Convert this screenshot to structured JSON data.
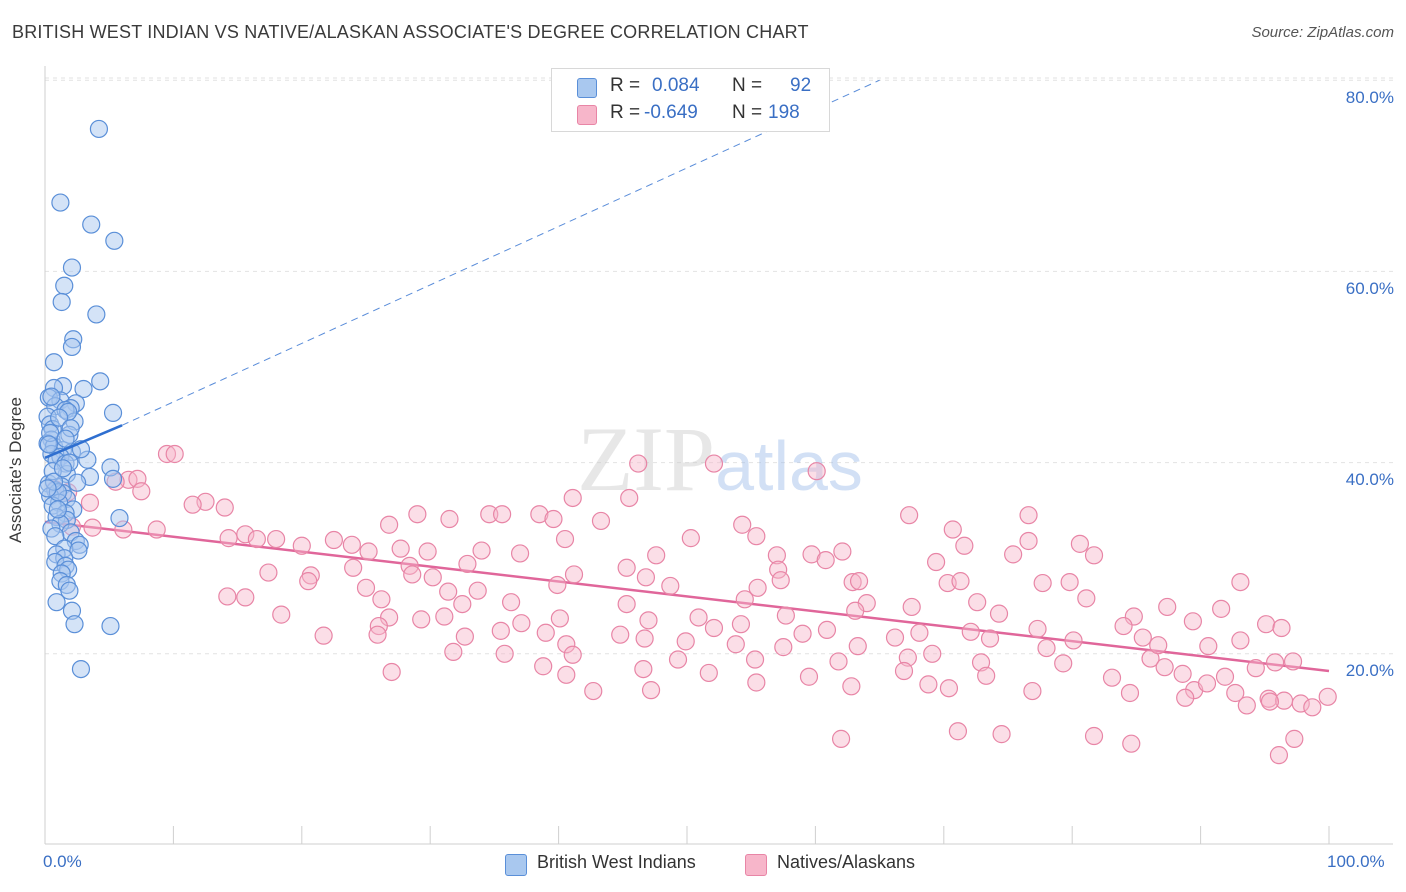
{
  "title": "BRITISH WEST INDIAN VS NATIVE/ALASKAN ASSOCIATE'S DEGREE CORRELATION CHART",
  "source": "Source: ZipAtlas.com",
  "watermark": "ZIPatlas",
  "colors": {
    "blue_fill": "#a9c8ef",
    "blue_stroke": "#5a8fd8",
    "blue_line": "#2f6fd0",
    "pink_fill": "#f7b6ca",
    "pink_stroke": "#e885a6",
    "pink_line": "#e0669a",
    "axis_text": "#3a6fc4",
    "grid": "#e2e2e2"
  },
  "legend": {
    "r_label": "R =",
    "n_label": "N =",
    "rows": [
      {
        "r": "0.084",
        "n": "92",
        "color": "blue"
      },
      {
        "r": "-0.649",
        "n": "198",
        "color": "pink"
      }
    ]
  },
  "bottom_legend": [
    "British West Indians",
    "Natives/Alaskans"
  ],
  "chart_data": {
    "type": "scatter",
    "title": "BRITISH WEST INDIAN VS NATIVE/ALASKAN ASSOCIATE'S DEGREE CORRELATION CHART",
    "xlabel": "",
    "ylabel": "Associate's Degree",
    "x_tick_labels": [
      "0.0%",
      "100.0%"
    ],
    "y_tick_labels": [
      "20.0%",
      "40.0%",
      "60.0%",
      "80.0%"
    ],
    "xlim": [
      0,
      100
    ],
    "ylim": [
      0,
      82
    ],
    "grid": true,
    "legend_position": "top-center",
    "series": [
      {
        "name": "British West Indians",
        "r": 0.084,
        "n": 92,
        "trend_solid": [
          [
            0,
            40.5
          ],
          [
            6,
            43.9
          ]
        ],
        "trend_dashed": [
          [
            6,
            43.9
          ],
          [
            65,
            80.0
          ]
        ],
        "points": [
          [
            4.2,
            74.9
          ],
          [
            1.2,
            67.2
          ],
          [
            3.6,
            64.9
          ],
          [
            5.4,
            63.2
          ],
          [
            2.1,
            60.4
          ],
          [
            1.5,
            58.5
          ],
          [
            1.3,
            56.8
          ],
          [
            4.0,
            55.5
          ],
          [
            2.2,
            52.9
          ],
          [
            2.1,
            52.1
          ],
          [
            0.7,
            50.5
          ],
          [
            4.3,
            48.5
          ],
          [
            1.4,
            48.0
          ],
          [
            0.7,
            47.8
          ],
          [
            3.0,
            47.7
          ],
          [
            0.3,
            46.8
          ],
          [
            1.2,
            46.5
          ],
          [
            2.4,
            46.2
          ],
          [
            0.8,
            45.9
          ],
          [
            2.0,
            45.7
          ],
          [
            1.6,
            45.5
          ],
          [
            5.3,
            45.2
          ],
          [
            0.2,
            44.8
          ],
          [
            2.3,
            44.3
          ],
          [
            0.4,
            44.0
          ],
          [
            0.6,
            43.5
          ],
          [
            1.9,
            42.9
          ],
          [
            0.5,
            42.4
          ],
          [
            0.2,
            42.0
          ],
          [
            0.7,
            41.7
          ],
          [
            1.4,
            41.3
          ],
          [
            2.1,
            41.1
          ],
          [
            0.5,
            40.9
          ],
          [
            1.2,
            40.6
          ],
          [
            3.3,
            40.3
          ],
          [
            0.9,
            40.2
          ],
          [
            1.6,
            39.9
          ],
          [
            5.1,
            39.5
          ],
          [
            1.7,
            38.8
          ],
          [
            3.5,
            38.5
          ],
          [
            5.3,
            38.3
          ],
          [
            0.3,
            37.8
          ],
          [
            1.3,
            37.5
          ],
          [
            0.8,
            37.1
          ],
          [
            1.4,
            36.8
          ],
          [
            0.4,
            36.5
          ],
          [
            1.7,
            36.2
          ],
          [
            1.1,
            35.8
          ],
          [
            0.6,
            35.5
          ],
          [
            2.2,
            35.1
          ],
          [
            1.6,
            34.7
          ],
          [
            0.9,
            34.3
          ],
          [
            1.7,
            34.0
          ],
          [
            5.8,
            34.2
          ],
          [
            1.2,
            33.6
          ],
          [
            0.5,
            33.1
          ],
          [
            2.0,
            32.7
          ],
          [
            0.8,
            32.3
          ],
          [
            2.4,
            31.8
          ],
          [
            2.7,
            31.4
          ],
          [
            1.5,
            31.0
          ],
          [
            2.6,
            30.8
          ],
          [
            0.9,
            30.4
          ],
          [
            1.5,
            30.0
          ],
          [
            0.8,
            29.6
          ],
          [
            1.6,
            29.2
          ],
          [
            1.8,
            28.8
          ],
          [
            1.3,
            28.4
          ],
          [
            1.2,
            27.6
          ],
          [
            1.7,
            27.2
          ],
          [
            1.9,
            26.6
          ],
          [
            0.9,
            25.4
          ],
          [
            2.1,
            24.5
          ],
          [
            2.3,
            23.1
          ],
          [
            5.1,
            22.9
          ],
          [
            2.8,
            18.4
          ],
          [
            0.6,
            39.1
          ],
          [
            1.0,
            36.9
          ],
          [
            1.8,
            45.3
          ],
          [
            0.4,
            43.1
          ],
          [
            2.5,
            37.9
          ],
          [
            1.1,
            44.7
          ],
          [
            0.3,
            41.9
          ],
          [
            1.9,
            40.0
          ],
          [
            0.7,
            38.0
          ],
          [
            2.8,
            41.4
          ],
          [
            1.4,
            39.4
          ],
          [
            0.5,
            46.9
          ],
          [
            2.0,
            43.6
          ],
          [
            1.0,
            35.1
          ],
          [
            0.2,
            37.3
          ],
          [
            1.6,
            42.5
          ]
        ]
      },
      {
        "name": "Natives/Alaskans",
        "r": -0.649,
        "n": 198,
        "trend": [
          [
            0,
            33.8
          ],
          [
            100,
            18.2
          ]
        ],
        "points": [
          [
            9.5,
            40.9
          ],
          [
            10.1,
            40.9
          ],
          [
            46.2,
            39.9
          ],
          [
            52.1,
            39.9
          ],
          [
            60.1,
            39.1
          ],
          [
            6.5,
            38.2
          ],
          [
            7.2,
            38.3
          ],
          [
            5.5,
            38.0
          ],
          [
            0.8,
            37.2
          ],
          [
            1.8,
            36.9
          ],
          [
            7.5,
            37.0
          ],
          [
            41.1,
            36.3
          ],
          [
            45.5,
            36.3
          ],
          [
            12.5,
            35.9
          ],
          [
            11.5,
            35.6
          ],
          [
            3.5,
            35.8
          ],
          [
            14.0,
            35.3
          ],
          [
            29.0,
            34.6
          ],
          [
            34.6,
            34.6
          ],
          [
            35.6,
            34.6
          ],
          [
            38.5,
            34.6
          ],
          [
            67.3,
            34.5
          ],
          [
            76.6,
            34.5
          ],
          [
            31.5,
            34.1
          ],
          [
            39.6,
            34.1
          ],
          [
            43.3,
            33.9
          ],
          [
            26.8,
            33.5
          ],
          [
            54.3,
            33.5
          ],
          [
            70.7,
            33.0
          ],
          [
            2.1,
            33.3
          ],
          [
            3.7,
            33.2
          ],
          [
            6.1,
            33.0
          ],
          [
            8.7,
            33.0
          ],
          [
            15.6,
            32.5
          ],
          [
            16.5,
            32.0
          ],
          [
            14.3,
            32.1
          ],
          [
            18.0,
            32.0
          ],
          [
            22.5,
            31.9
          ],
          [
            40.5,
            32.0
          ],
          [
            50.3,
            32.1
          ],
          [
            55.4,
            32.3
          ],
          [
            76.6,
            31.8
          ],
          [
            20.0,
            31.3
          ],
          [
            23.9,
            31.4
          ],
          [
            25.2,
            30.7
          ],
          [
            27.7,
            31.0
          ],
          [
            29.8,
            30.7
          ],
          [
            34.0,
            30.8
          ],
          [
            37.0,
            30.5
          ],
          [
            47.6,
            30.3
          ],
          [
            57.0,
            30.3
          ],
          [
            59.7,
            30.4
          ],
          [
            60.8,
            29.8
          ],
          [
            62.1,
            30.7
          ],
          [
            75.4,
            30.4
          ],
          [
            80.6,
            31.5
          ],
          [
            71.6,
            31.3
          ],
          [
            32.9,
            29.4
          ],
          [
            24.0,
            29.0
          ],
          [
            28.4,
            29.2
          ],
          [
            45.3,
            29.0
          ],
          [
            57.1,
            28.8
          ],
          [
            69.4,
            29.6
          ],
          [
            81.7,
            30.3
          ],
          [
            17.4,
            28.5
          ],
          [
            20.7,
            28.2
          ],
          [
            28.6,
            28.3
          ],
          [
            30.2,
            28.0
          ],
          [
            41.2,
            28.3
          ],
          [
            46.8,
            28.0
          ],
          [
            57.3,
            27.7
          ],
          [
            62.9,
            27.5
          ],
          [
            70.3,
            27.4
          ],
          [
            77.7,
            27.4
          ],
          [
            93.1,
            27.5
          ],
          [
            20.5,
            27.6
          ],
          [
            25.0,
            26.9
          ],
          [
            31.4,
            26.5
          ],
          [
            33.7,
            26.6
          ],
          [
            39.9,
            27.2
          ],
          [
            48.7,
            27.1
          ],
          [
            55.5,
            26.9
          ],
          [
            63.4,
            27.6
          ],
          [
            71.3,
            27.6
          ],
          [
            79.8,
            27.5
          ],
          [
            14.2,
            26.0
          ],
          [
            15.6,
            25.9
          ],
          [
            26.2,
            25.7
          ],
          [
            32.5,
            25.2
          ],
          [
            36.3,
            25.4
          ],
          [
            45.3,
            25.2
          ],
          [
            54.5,
            25.7
          ],
          [
            64.0,
            25.3
          ],
          [
            72.6,
            25.4
          ],
          [
            81.1,
            25.8
          ],
          [
            87.4,
            24.9
          ],
          [
            18.4,
            24.1
          ],
          [
            26.8,
            23.8
          ],
          [
            29.3,
            23.6
          ],
          [
            31.1,
            23.9
          ],
          [
            37.1,
            23.2
          ],
          [
            40.1,
            23.7
          ],
          [
            47.0,
            23.5
          ],
          [
            50.9,
            23.8
          ],
          [
            57.7,
            24.0
          ],
          [
            63.1,
            24.5
          ],
          [
            67.5,
            24.9
          ],
          [
            74.3,
            24.2
          ],
          [
            84.8,
            23.9
          ],
          [
            91.6,
            24.7
          ],
          [
            95.1,
            23.1
          ],
          [
            96.3,
            22.7
          ],
          [
            26.0,
            22.9
          ],
          [
            35.5,
            22.4
          ],
          [
            44.8,
            22.0
          ],
          [
            52.1,
            22.7
          ],
          [
            60.9,
            22.5
          ],
          [
            68.1,
            22.2
          ],
          [
            72.1,
            22.3
          ],
          [
            77.3,
            22.6
          ],
          [
            84.0,
            22.9
          ],
          [
            89.4,
            23.4
          ],
          [
            21.7,
            21.9
          ],
          [
            25.9,
            22.0
          ],
          [
            32.7,
            21.8
          ],
          [
            39.0,
            22.2
          ],
          [
            46.7,
            21.6
          ],
          [
            49.9,
            21.3
          ],
          [
            53.8,
            21.0
          ],
          [
            59.0,
            22.1
          ],
          [
            66.2,
            21.7
          ],
          [
            73.6,
            21.6
          ],
          [
            80.1,
            21.4
          ],
          [
            85.5,
            21.7
          ],
          [
            93.1,
            21.4
          ],
          [
            40.6,
            21.0
          ],
          [
            57.5,
            20.7
          ],
          [
            69.1,
            20.0
          ],
          [
            78.0,
            20.6
          ],
          [
            90.6,
            20.8
          ],
          [
            31.8,
            20.2
          ],
          [
            41.1,
            19.9
          ],
          [
            49.3,
            19.4
          ],
          [
            55.3,
            19.4
          ],
          [
            61.8,
            19.2
          ],
          [
            67.2,
            19.6
          ],
          [
            72.9,
            19.1
          ],
          [
            79.3,
            19.0
          ],
          [
            86.1,
            19.5
          ],
          [
            95.8,
            19.1
          ],
          [
            97.2,
            19.2
          ],
          [
            38.8,
            18.7
          ],
          [
            46.6,
            18.4
          ],
          [
            51.7,
            18.0
          ],
          [
            59.5,
            17.6
          ],
          [
            66.9,
            18.2
          ],
          [
            73.3,
            17.7
          ],
          [
            83.1,
            17.5
          ],
          [
            87.2,
            18.6
          ],
          [
            88.6,
            17.9
          ],
          [
            91.9,
            17.6
          ],
          [
            94.3,
            18.5
          ],
          [
            27.0,
            18.1
          ],
          [
            42.7,
            16.1
          ],
          [
            47.2,
            16.2
          ],
          [
            55.4,
            17.0
          ],
          [
            62.8,
            16.6
          ],
          [
            70.4,
            16.4
          ],
          [
            76.9,
            16.1
          ],
          [
            84.5,
            15.9
          ],
          [
            89.5,
            16.2
          ],
          [
            90.5,
            16.9
          ],
          [
            92.7,
            15.9
          ],
          [
            95.3,
            15.3
          ],
          [
            96.5,
            15.1
          ],
          [
            97.8,
            14.8
          ],
          [
            98.7,
            14.4
          ],
          [
            99.9,
            15.5
          ],
          [
            74.5,
            11.6
          ],
          [
            62.0,
            11.1
          ],
          [
            84.6,
            10.6
          ],
          [
            81.7,
            11.4
          ],
          [
            96.1,
            9.4
          ],
          [
            97.3,
            11.1
          ],
          [
            71.1,
            11.9
          ],
          [
            93.6,
            14.6
          ],
          [
            88.8,
            15.4
          ],
          [
            95.4,
            15.0
          ],
          [
            68.8,
            16.8
          ],
          [
            40.6,
            17.8
          ],
          [
            35.8,
            20.0
          ],
          [
            54.2,
            23.1
          ],
          [
            63.3,
            20.8
          ],
          [
            86.7,
            20.9
          ]
        ]
      }
    ]
  }
}
